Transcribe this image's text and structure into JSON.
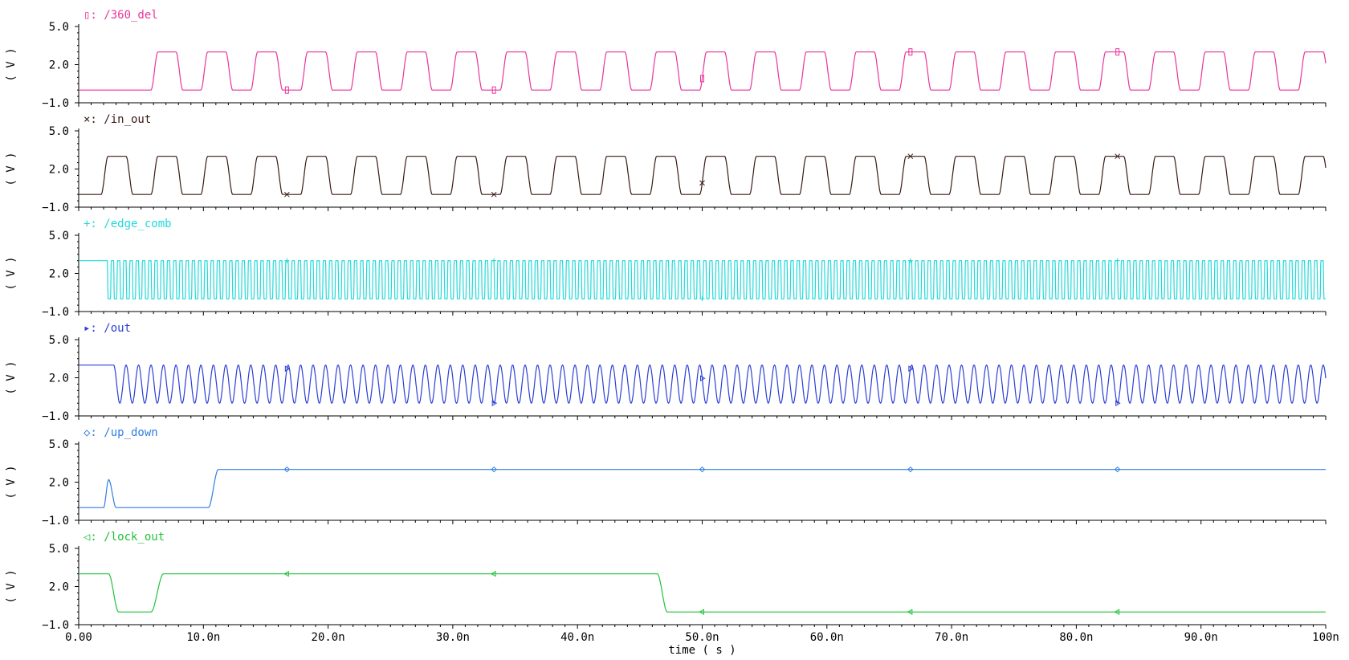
{
  "chart_data": {
    "type": "line",
    "xlabel": "time ( s )",
    "xlim": [
      0,
      100
    ],
    "x_unit": "ns",
    "x_ticks": [
      "0.00",
      "10.0n",
      "20.0n",
      "30.0n",
      "40.0n",
      "50.0n",
      "60.0n",
      "70.0n",
      "80.0n",
      "90.0n",
      "100n"
    ],
    "ylabel": "( V )",
    "ylim": [
      -1.0,
      5.0
    ],
    "y_ticks": [
      "5.0",
      "2.0",
      "-1.0"
    ],
    "series": [
      {
        "name": "/360_del",
        "marker_glyph": "▯",
        "color": "#e8359a",
        "kind": "square",
        "low": 0.0,
        "high": 3.0,
        "start": 5.8,
        "period": 4.0,
        "edge": 0.55
      },
      {
        "name": "/in_out",
        "marker_glyph": "×",
        "color": "#3a1a14",
        "kind": "square",
        "low": 0.0,
        "high": 3.0,
        "start": 1.8,
        "period": 4.0,
        "edge": 0.55
      },
      {
        "name": "/edge_comb",
        "marker_glyph": "+",
        "color": "#22d8d8",
        "kind": "comb",
        "low": 0.0,
        "high": 3.0,
        "start": 2.3,
        "period": 0.5
      },
      {
        "name": "/out",
        "marker_glyph": "▸",
        "color": "#2b3fd6",
        "kind": "sine",
        "low": 0.0,
        "high": 3.0,
        "start": 2.8,
        "period": 1.0
      },
      {
        "name": "/up_down",
        "marker_glyph": "◇",
        "color": "#2f7fe0",
        "kind": "steps",
        "points": [
          [
            0,
            0.0
          ],
          [
            2.0,
            0.0
          ],
          [
            2.4,
            2.2
          ],
          [
            3.0,
            0.0
          ],
          [
            10.4,
            0.0
          ],
          [
            11.2,
            3.0
          ],
          [
            100,
            3.0
          ]
        ]
      },
      {
        "name": "/lock_out",
        "marker_glyph": "◁",
        "color": "#22c23a",
        "kind": "steps",
        "points": [
          [
            0,
            3.0
          ],
          [
            2.4,
            3.0
          ],
          [
            3.2,
            0.0
          ],
          [
            5.8,
            0.0
          ],
          [
            6.8,
            3.0
          ],
          [
            46.4,
            3.0
          ],
          [
            47.2,
            0.0
          ],
          [
            100,
            0.0
          ]
        ]
      }
    ]
  }
}
